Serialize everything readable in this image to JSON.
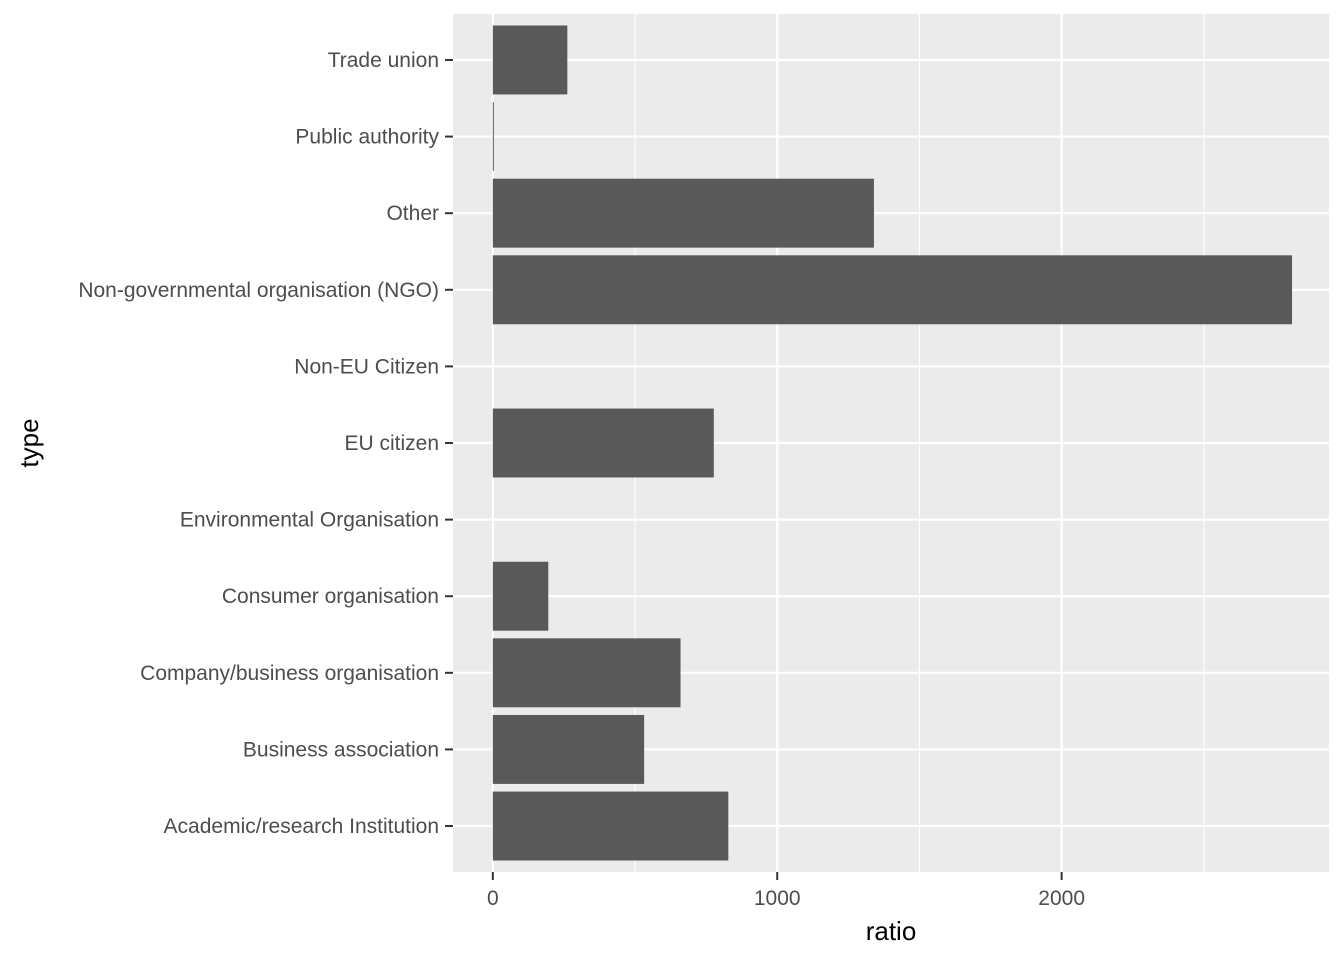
{
  "chart_data": {
    "type": "bar",
    "orientation": "horizontal",
    "xlabel": "ratio",
    "ylabel": "type",
    "xlim": [
      -140,
      2940
    ],
    "x_ticks": [
      0,
      1000,
      2000
    ],
    "grid": true,
    "legend": "none",
    "categories": [
      "Academic/research Institution",
      "Business association",
      "Company/business organisation",
      "Consumer organisation",
      "Environmental Organisation",
      "EU citizen",
      "Non-EU Citizen",
      "Non-governmental organisation (NGO)",
      "Other",
      "Public authority",
      "Trade union"
    ],
    "values": [
      828,
      532,
      660,
      195,
      0,
      777,
      0,
      2810,
      1340,
      3,
      262
    ],
    "colors": {
      "bar": "#595959",
      "panel": "#ebebeb",
      "grid": "#ffffff",
      "tick_label": "#4d4d4d",
      "tick_mark": "#333333",
      "axis_title": "#000000"
    }
  }
}
